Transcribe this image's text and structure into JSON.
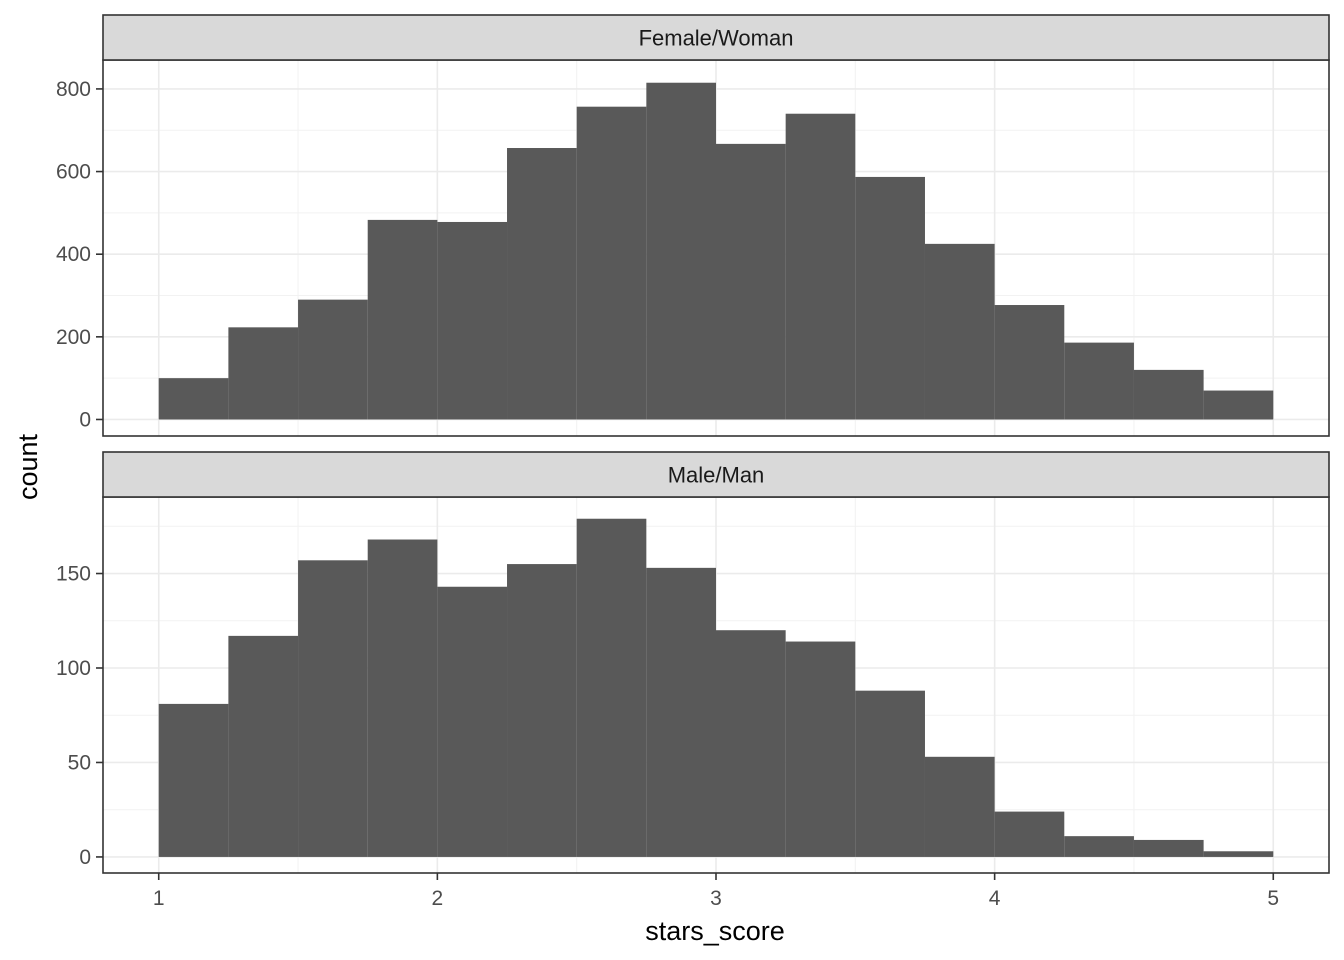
{
  "chart_data": {
    "type": "bar",
    "xlabel": "stars_score",
    "ylabel": "count",
    "x_ticks": [
      1,
      2,
      3,
      4,
      5
    ],
    "xlim": [
      0.8,
      5.2
    ],
    "bin_width": 0.25,
    "bin_starts": [
      1.0,
      1.25,
      1.5,
      1.75,
      2.0,
      2.25,
      2.5,
      2.75,
      3.0,
      3.25,
      3.5,
      3.75,
      4.0,
      4.25,
      4.5,
      4.75
    ],
    "bar_color": "#595959",
    "panels": [
      {
        "label": "Female/Woman",
        "ylim": [
          -40,
          870
        ],
        "y_ticks": [
          0,
          200,
          400,
          600,
          800
        ],
        "values": [
          100,
          223,
          290,
          483,
          478,
          657,
          757,
          815,
          667,
          740,
          587,
          425,
          277,
          186,
          120,
          70
        ]
      },
      {
        "label": "Male/Man",
        "ylim": [
          -8.5,
          190.5
        ],
        "y_ticks": [
          0,
          50,
          100,
          150
        ],
        "values": [
          81,
          117,
          157,
          168,
          143,
          155,
          179,
          153,
          120,
          114,
          88,
          53,
          24,
          11,
          9,
          3
        ]
      }
    ]
  }
}
